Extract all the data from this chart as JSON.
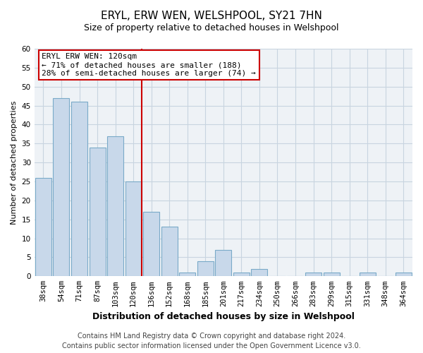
{
  "title": "ERYL, ERW WEN, WELSHPOOL, SY21 7HN",
  "subtitle": "Size of property relative to detached houses in Welshpool",
  "xlabel": "Distribution of detached houses by size in Welshpool",
  "ylabel": "Number of detached properties",
  "bar_labels": [
    "38sqm",
    "54sqm",
    "71sqm",
    "87sqm",
    "103sqm",
    "120sqm",
    "136sqm",
    "152sqm",
    "168sqm",
    "185sqm",
    "201sqm",
    "217sqm",
    "234sqm",
    "250sqm",
    "266sqm",
    "283sqm",
    "299sqm",
    "315sqm",
    "331sqm",
    "348sqm",
    "364sqm"
  ],
  "bar_values": [
    26,
    47,
    46,
    34,
    37,
    25,
    17,
    13,
    1,
    4,
    7,
    1,
    2,
    0,
    0,
    1,
    1,
    0,
    1,
    0,
    1
  ],
  "bar_color": "#c8d8ea",
  "bar_edge_color": "#7aaac8",
  "highlight_index": 5,
  "highlight_line_color": "#cc0000",
  "ylim": [
    0,
    60
  ],
  "yticks": [
    0,
    5,
    10,
    15,
    20,
    25,
    30,
    35,
    40,
    45,
    50,
    55,
    60
  ],
  "annotation_title": "ERYL ERW WEN: 120sqm",
  "annotation_line1": "← 71% of detached houses are smaller (188)",
  "annotation_line2": "28% of semi-detached houses are larger (74) →",
  "annotation_box_color": "#ffffff",
  "annotation_box_edge": "#cc0000",
  "footer_line1": "Contains HM Land Registry data © Crown copyright and database right 2024.",
  "footer_line2": "Contains public sector information licensed under the Open Government Licence v3.0.",
  "grid_color": "#c8d4e0",
  "bg_color": "#eef2f6",
  "title_fontsize": 11,
  "subtitle_fontsize": 9,
  "xlabel_fontsize": 9,
  "ylabel_fontsize": 8,
  "tick_fontsize": 7.5,
  "annotation_fontsize": 8,
  "footer_fontsize": 7
}
